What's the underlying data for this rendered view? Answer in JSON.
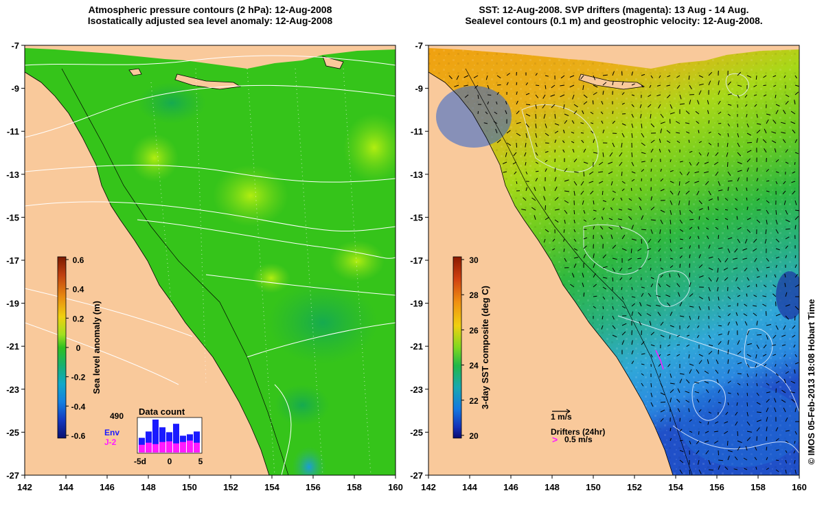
{
  "left_panel": {
    "title_line1": "Atmospheric pressure contours (2 hPa): 12-Aug-2008",
    "title_line2": "Isostatically adjusted sea level anomaly: 12-Aug-2008",
    "colorbar_label": "Sea level anomaly (m)",
    "colorbar_ticks": [
      "0.6",
      "0.4",
      "0.2",
      "0",
      "-0.2",
      "-0.4",
      "-0.6"
    ],
    "histogram": {
      "title": "Data count",
      "max_label": "490",
      "legend_env": "Env",
      "legend_j2": "J-2",
      "x_ticks": [
        "-5d",
        "0",
        "5"
      ],
      "env_values": [
        210,
        300,
        470,
        360,
        290,
        410,
        240,
        260,
        300
      ],
      "j2_values": [
        110,
        140,
        120,
        150,
        160,
        130,
        150,
        170,
        140
      ],
      "env_color": "#1a1aff",
      "j2_color": "#ff1aff"
    }
  },
  "right_panel": {
    "title_line1": "SST: 12-Aug-2008. SVP drifters (magenta): 13 Aug - 14 Aug.",
    "title_line2": "Sealevel contours (0.1 m) and geostrophic velocity: 12-Aug-2008.",
    "colorbar_label": "3-day SST composite (deg C)",
    "colorbar_ticks": [
      "30",
      "28",
      "26",
      "24",
      "22",
      "20"
    ],
    "vector_scale_label": "1 m/s",
    "drifters_label": "Drifters (24hr)",
    "drifter_scale_label": "0.5 m/s"
  },
  "axes": {
    "x_ticks": [
      "142",
      "144",
      "146",
      "148",
      "150",
      "152",
      "154",
      "156",
      "158",
      "160"
    ],
    "y_ticks": [
      "-7",
      "-9",
      "-11",
      "-13",
      "-15",
      "-17",
      "-19",
      "-21",
      "-23",
      "-25",
      "-27"
    ]
  },
  "credit": "© IMOS 05-Feb-2013 18:08 Hobart Time",
  "colors": {
    "land": "#f9c99b",
    "ocean_green": "#35c41a",
    "sst_orange": "#f5a00a",
    "sst_blue": "#2a9be8"
  }
}
